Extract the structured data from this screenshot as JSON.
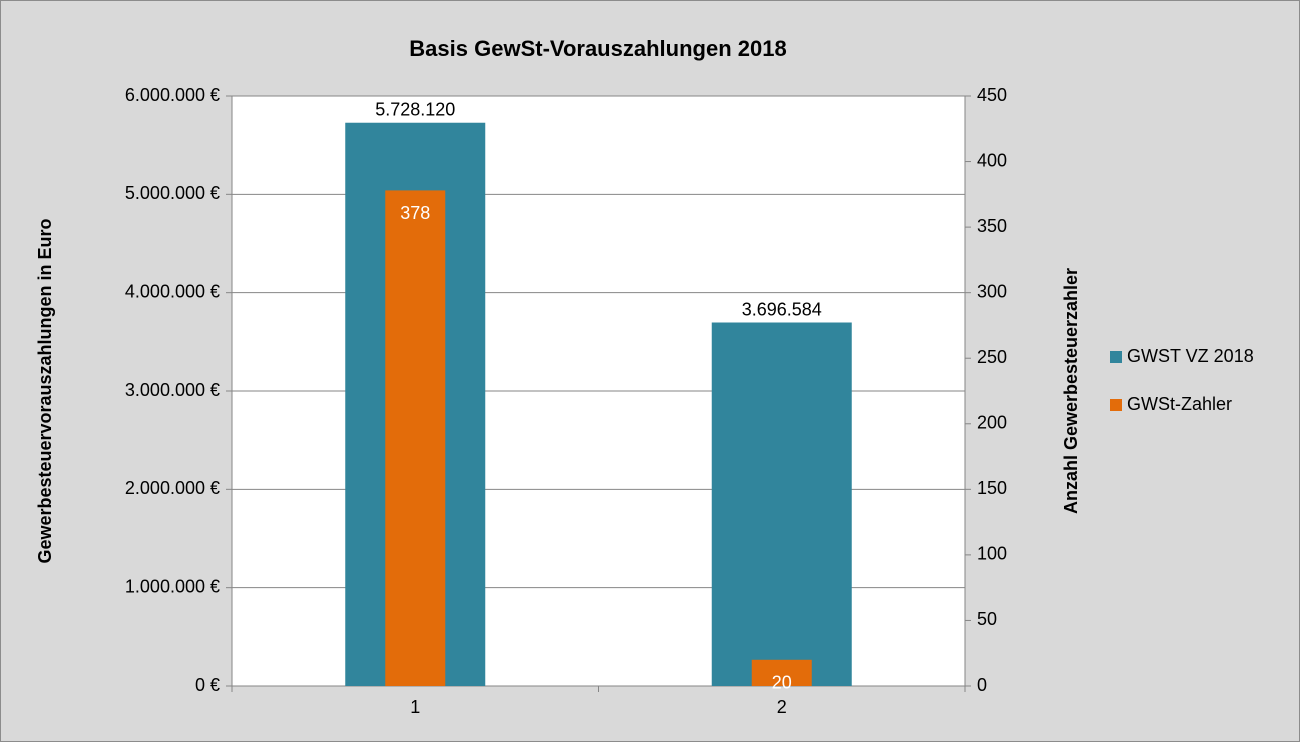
{
  "chart_data": {
    "type": "bar",
    "title": "Basis GewSt-Vorauszahlungen 2018",
    "categories": [
      "1",
      "2"
    ],
    "ylabel": "Gewerbesteuervorauszahlungen in Euro",
    "y2label": "Anzahl Gewerbesteuerzahler",
    "series": [
      {
        "name": "GWST VZ 2018",
        "color": "#31859c",
        "values": [
          5728120,
          3696584
        ],
        "value_labels": [
          "5.728.120",
          "3.696.584"
        ]
      },
      {
        "name": "GWSt-Zahler",
        "color": "#e36c0a",
        "values": [
          378,
          20
        ],
        "axis": "y2"
      }
    ],
    "ylim": [
      0,
      6000000
    ],
    "yticks": [
      {
        "value": 0,
        "label": "0 €"
      },
      {
        "value": 1000000,
        "label": "1.000.000 €"
      },
      {
        "value": 2000000,
        "label": "2.000.000 €"
      },
      {
        "value": 3000000,
        "label": "3.000.000 €"
      },
      {
        "value": 4000000,
        "label": "4.000.000 €"
      },
      {
        "value": 5000000,
        "label": "5.000.000 €"
      },
      {
        "value": 6000000,
        "label": "6.000.000 €"
      }
    ],
    "y2lim": [
      0,
      450
    ],
    "y2ticks": [
      0,
      50,
      100,
      150,
      200,
      250,
      300,
      350,
      400,
      450
    ],
    "grid": true,
    "legend": "right"
  }
}
